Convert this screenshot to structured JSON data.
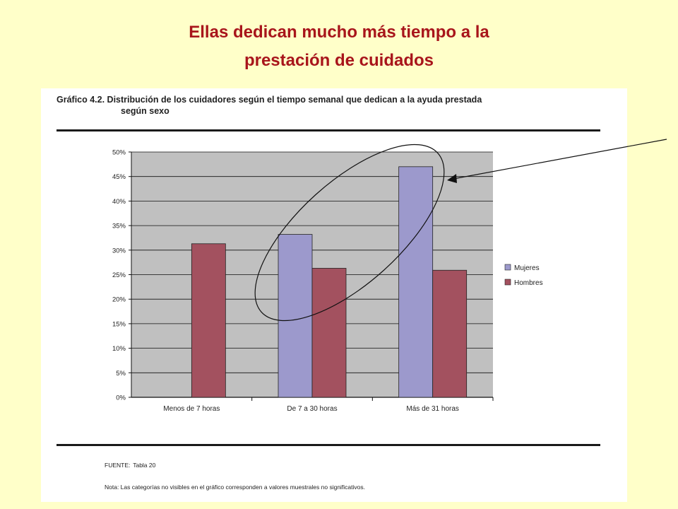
{
  "slide": {
    "title_line1": "Ellas dedican mucho más tiempo a la",
    "title_line2": "prestación de cuidados"
  },
  "figure": {
    "caption_line1": "Gráfico 4.2. Distribución de los cuidadores según el tiempo semanal que dedican a la ayuda prestada",
    "caption_line2": "según sexo",
    "source_label": "FUENTE:",
    "source_value": "Tabla 20",
    "note": "Nota: Las categorías no visibles en el gráfico corresponden a valores muestrales no significativos."
  },
  "colors": {
    "mujeres": "#9c99cc",
    "hombres": "#a3515f",
    "title": "#a8151b",
    "plot_bg": "#c0c0c0"
  },
  "chart_data": {
    "type": "bar",
    "categories": [
      "Menos de 7 horas",
      "De 7 a 30 horas",
      "Más de 31 horas"
    ],
    "series": [
      {
        "name": "Mujeres",
        "values": [
          null,
          33.2,
          47.0
        ]
      },
      {
        "name": "Hombres",
        "values": [
          31.3,
          26.3,
          25.9
        ]
      }
    ],
    "ylim": [
      0,
      50
    ],
    "yticks": [
      0,
      5,
      10,
      15,
      20,
      25,
      30,
      35,
      40,
      45,
      50
    ],
    "ytick_suffix": "%",
    "grid": true,
    "legend_position": "right",
    "annotation": "ellipse highlighting the Mujeres bars of \"De 7 a 30 horas\" and \"Más de 31 horas\", with an arrow pointing to the tallest bar"
  }
}
